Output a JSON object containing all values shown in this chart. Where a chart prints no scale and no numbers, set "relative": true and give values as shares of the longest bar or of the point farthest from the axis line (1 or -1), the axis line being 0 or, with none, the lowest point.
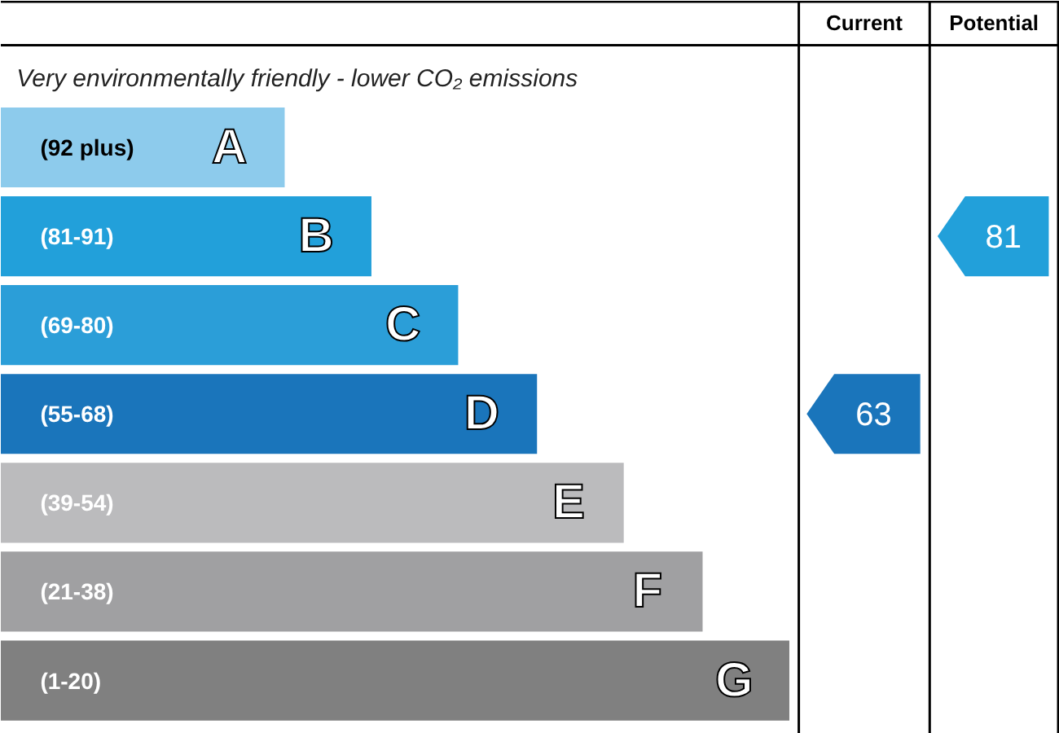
{
  "chart_data": {
    "type": "bar",
    "orientation": "horizontal",
    "relative": true,
    "tick_labels": false,
    "grid": false,
    "title": "Very environmentally friendly - lower CO₂ emissions",
    "categories": [
      "(92 plus)",
      "(81-91)",
      "(69-80)",
      "(55-68)",
      "(39-54)",
      "(21-38)",
      "(1-20)"
    ],
    "values": [
      0.36,
      0.47,
      0.58,
      0.68,
      0.79,
      0.89,
      1
    ],
    "colors": [
      "#8dcbec",
      "#22a0da",
      "#2b9ed8",
      "#1a75bb",
      "#bbbbbd",
      "#a0a0a2",
      "#808080"
    ],
    "annotations": [
      "Current",
      "Potential",
      "63",
      "81",
      {
        "text": "A",
        "x": 0.36,
        "y": "(92 plus)"
      },
      {
        "text": "B",
        "x": 0.47,
        "y": "(81-91)"
      },
      {
        "text": "C",
        "x": 0.58,
        "y": "(69-80)"
      },
      {
        "text": "D",
        "x": 0.68,
        "y": "(55-68)"
      },
      {
        "text": "E",
        "x": 0.79,
        "y": "(39-54)"
      },
      {
        "text": "F",
        "x": 0.89,
        "y": "(21-38)"
      },
      {
        "text": "G",
        "x": 1,
        "y": "(1-20)"
      }
    ]
  }
}
